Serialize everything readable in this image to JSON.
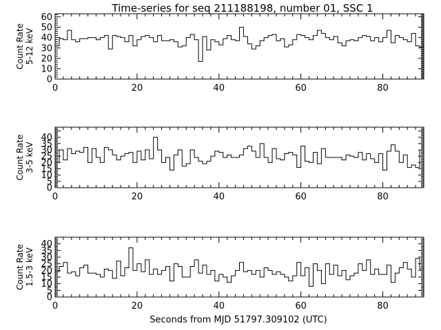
{
  "chart_data": {
    "title": "Time-series for seq 211188198, number 01, SSC 1",
    "xlabel": "Seconds from MJD 51797.309102 (UTC)",
    "xlim": [
      0,
      90
    ],
    "x_ticks": [
      0,
      20,
      40,
      60,
      80
    ],
    "panels": [
      {
        "type": "step",
        "ylabel_lines": [
          "Count Rate",
          "5-12 keV"
        ],
        "ylim": [
          0,
          63
        ],
        "y_ticks": [
          0,
          10,
          20,
          30,
          40,
          50,
          60
        ],
        "bin_width": 1,
        "values": [
          32,
          39,
          38,
          47,
          38,
          36,
          39,
          39,
          40,
          40,
          38,
          40,
          42,
          29,
          42,
          41,
          40,
          36,
          42,
          32,
          38,
          41,
          42,
          40,
          36,
          42,
          37,
          37,
          38,
          36,
          31,
          32,
          40,
          43,
          38,
          17,
          41,
          28,
          38,
          36,
          33,
          39,
          42,
          38,
          37,
          50,
          41,
          34,
          29,
          32,
          37,
          40,
          42,
          43,
          37,
          39,
          31,
          33,
          38,
          43,
          42,
          40,
          38,
          42,
          47,
          44,
          40,
          38,
          41,
          35,
          32,
          37,
          38,
          37,
          40,
          42,
          41,
          37,
          40,
          36,
          40,
          47,
          35,
          42,
          40,
          38,
          36,
          44,
          32,
          31
        ]
      },
      {
        "type": "step",
        "ylabel_lines": [
          "Count Rate",
          "3-5 keV"
        ],
        "ylim": [
          0,
          48
        ],
        "y_ticks": [
          0,
          5,
          10,
          15,
          20,
          25,
          30,
          35,
          40
        ],
        "bin_width": 1,
        "values": [
          20,
          30,
          22,
          31,
          27,
          29,
          28,
          32,
          20,
          31,
          24,
          20,
          32,
          30,
          26,
          22,
          25,
          27,
          28,
          20,
          29,
          22,
          30,
          23,
          40,
          30,
          20,
          24,
          14,
          26,
          30,
          17,
          19,
          30,
          24,
          21,
          19,
          21,
          25,
          29,
          28,
          24,
          26,
          24,
          24,
          26,
          31,
          33,
          29,
          24,
          35,
          24,
          20,
          31,
          23,
          22,
          27,
          28,
          26,
          16,
          33,
          21,
          20,
          28,
          19,
          31,
          24,
          24,
          24,
          24,
          22,
          26,
          25,
          24,
          28,
          22,
          27,
          23,
          20,
          27,
          14,
          29,
          34,
          29,
          20,
          26,
          16,
          18,
          16,
          30
        ]
      },
      {
        "type": "step",
        "ylabel_lines": [
          "Count Rate",
          "1.5-3 keV"
        ],
        "ylim": [
          0,
          45
        ],
        "y_ticks": [
          0,
          5,
          10,
          15,
          20,
          25,
          30,
          35,
          40
        ],
        "bin_width": 1,
        "values": [
          19,
          23,
          26,
          18,
          19,
          16,
          22,
          24,
          18,
          18,
          17,
          15,
          21,
          20,
          14,
          27,
          16,
          22,
          37,
          20,
          25,
          19,
          28,
          17,
          21,
          17,
          20,
          23,
          12,
          25,
          23,
          15,
          15,
          23,
          28,
          18,
          24,
          17,
          20,
          12,
          17,
          15,
          11,
          16,
          20,
          26,
          19,
          20,
          17,
          20,
          15,
          22,
          20,
          17,
          19,
          17,
          15,
          12,
          16,
          26,
          16,
          22,
          8,
          25,
          20,
          10,
          25,
          17,
          24,
          16,
          20,
          13,
          16,
          18,
          25,
          20,
          28,
          17,
          21,
          17,
          17,
          24,
          11,
          18,
          22,
          26,
          21,
          15,
          29,
          21
        ]
      }
    ]
  }
}
